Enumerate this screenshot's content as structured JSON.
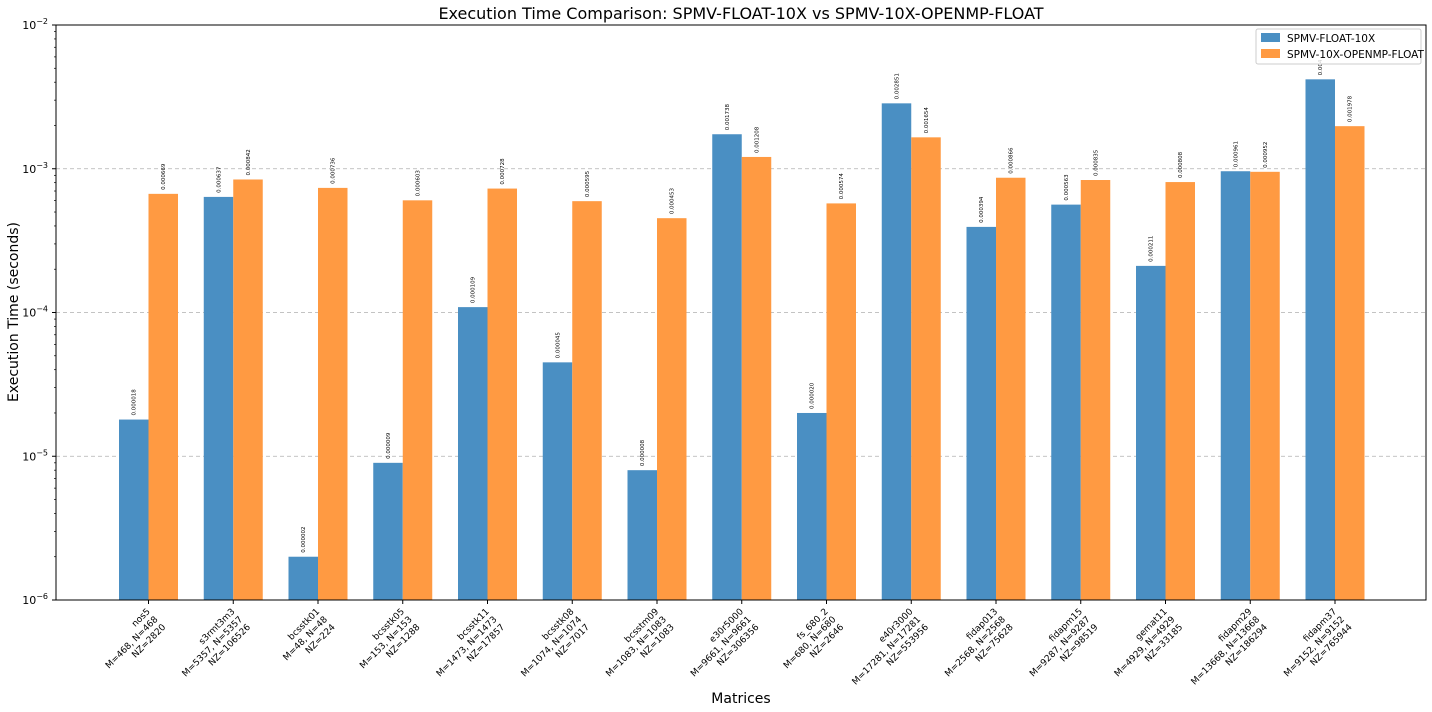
{
  "chart_data": {
    "type": "bar",
    "title": "Execution Time Comparison: SPMV-FLOAT-10X vs SPMV-10X-OPENMP-FLOAT",
    "xlabel": "Matrices",
    "ylabel": "Execution Time (seconds)",
    "yscale": "log",
    "ylim": [
      1e-06,
      0.01
    ],
    "yticks": [
      {
        "base": "10",
        "exp": "−6"
      },
      {
        "base": "10",
        "exp": "−5"
      },
      {
        "base": "10",
        "exp": "−4"
      },
      {
        "base": "10",
        "exp": "−3"
      },
      {
        "base": "10",
        "exp": "−2"
      }
    ],
    "grid": "y-dashed",
    "legend_position": "top-right",
    "categories": [
      [
        "nos5",
        "M=468, N=468",
        "NZ=2820"
      ],
      [
        "s3rmt3m3",
        "M=5357, N=5357",
        "NZ=106526"
      ],
      [
        "bcsstk01",
        "M=48, N=48",
        "NZ=224"
      ],
      [
        "bcsstk05",
        "M=153, N=153",
        "NZ=1288"
      ],
      [
        "bcsstk11",
        "M=1473, N=1473",
        "NZ=17857"
      ],
      [
        "bcsstk08",
        "M=1074, N=1074",
        "NZ=7017"
      ],
      [
        "bcsstm09",
        "M=1083, N=1083",
        "NZ=1083"
      ],
      [
        "e30r5000",
        "M=9661, N=9661",
        "NZ=306356"
      ],
      [
        "fs_680_2",
        "M=680, N=680",
        "NZ=2646"
      ],
      [
        "e40r3000",
        "M=17281, N=17281",
        "NZ=553956"
      ],
      [
        "fidap013",
        "M=2568, N=2568",
        "NZ=75628"
      ],
      [
        "fidapm15",
        "M=9287, N=9287",
        "NZ=98519"
      ],
      [
        "gemat11",
        "M=4929, N=4929",
        "NZ=33185"
      ],
      [
        "fidapm29",
        "M=13668, N=13668",
        "NZ=186294"
      ],
      [
        "fidapm37",
        "M=9152, N=9152",
        "NZ=765944"
      ]
    ],
    "series": [
      {
        "name": "SPMV-FLOAT-10X",
        "color": "#1f77b4",
        "values": [
          1.8e-05,
          0.000637,
          2e-06,
          9e-06,
          0.000109,
          4.5e-05,
          8e-06,
          0.001738,
          2e-05,
          0.002851,
          0.000394,
          0.000563,
          0.000211,
          0.000961,
          0.004188
        ],
        "labels": [
          "0.000018",
          "0.000637",
          "0.000002",
          "0.000009",
          "0.000109",
          "0.000045",
          "0.000008",
          "0.001738",
          "0.000020",
          "0.002851",
          "0.000394",
          "0.000563",
          "0.000211",
          "0.000961",
          "0.004"
        ]
      },
      {
        "name": "SPMV-10X-OPENMP-FLOAT",
        "color": "#ff7f0e",
        "values": [
          0.000669,
          0.000842,
          0.000736,
          0.000603,
          0.000728,
          0.000595,
          0.000453,
          0.001208,
          0.000574,
          0.001654,
          0.000866,
          0.000835,
          0.000808,
          0.000952,
          0.001978
        ],
        "labels": [
          "0.000669",
          "0.000842",
          "0.000736",
          "0.000603",
          "0.000728",
          "0.000595",
          "0.000453",
          "0.001208",
          "0.000574",
          "0.001654",
          "0.000866",
          "0.000835",
          "0.000808",
          "0.000952",
          "0.001978"
        ]
      }
    ]
  }
}
